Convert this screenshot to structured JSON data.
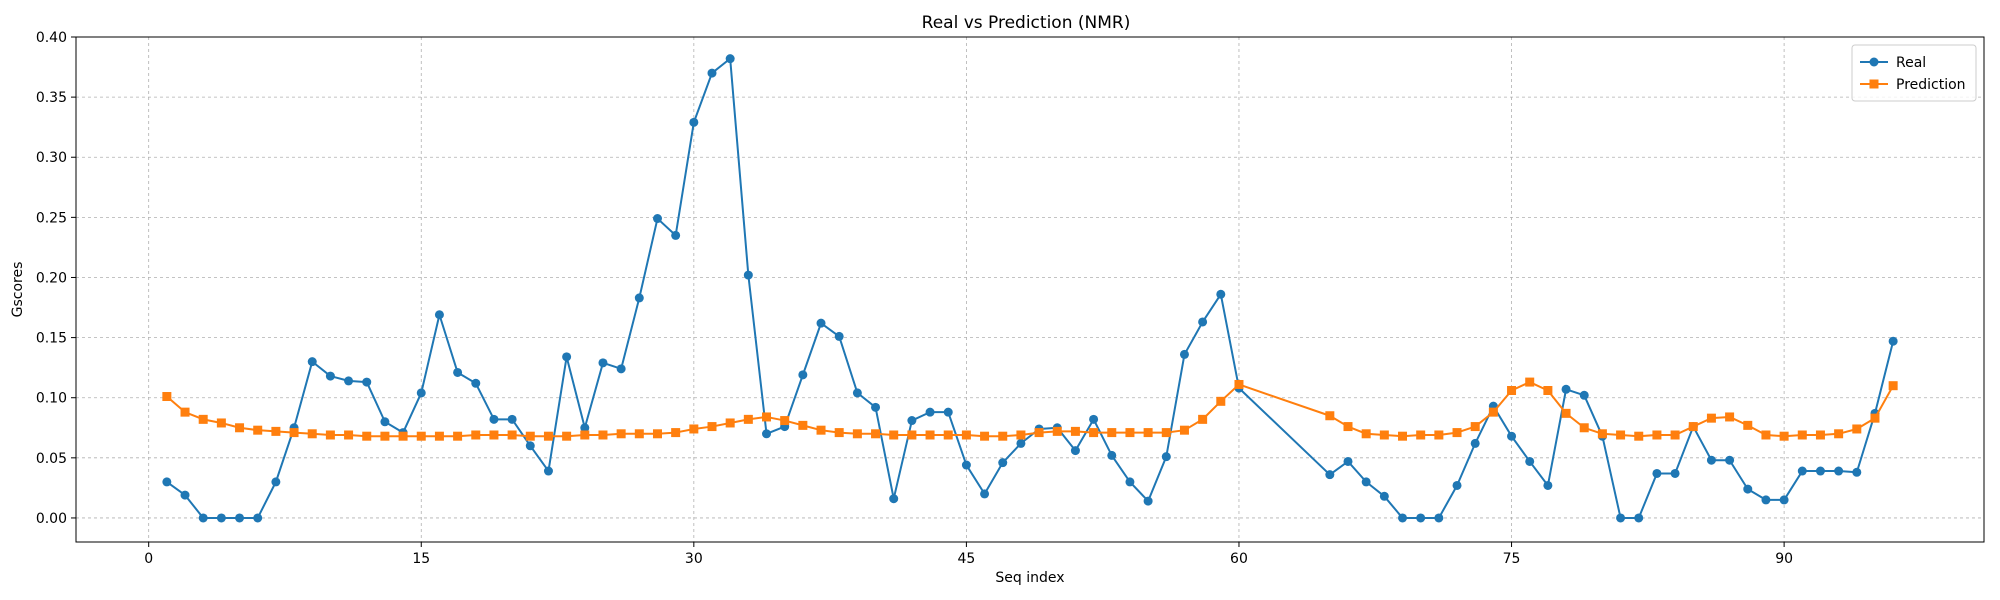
{
  "chart_data": {
    "type": "line",
    "title": "Real vs Prediction (NMR)",
    "xlabel": "Seq index",
    "ylabel": "Gscores",
    "xlim": [
      -4,
      101
    ],
    "ylim": [
      -0.02,
      0.4
    ],
    "xticks": [
      0,
      15,
      30,
      45,
      60,
      75,
      90
    ],
    "yticks": [
      0.0,
      0.05,
      0.1,
      0.15,
      0.2,
      0.25,
      0.3,
      0.35,
      0.4
    ],
    "ytick_labels": [
      "0.00",
      "0.05",
      "0.10",
      "0.15",
      "0.20",
      "0.25",
      "0.30",
      "0.35",
      "0.40"
    ],
    "grid": true,
    "legend_position": "top-right",
    "series": [
      {
        "name": "Real",
        "color": "#1f77b4",
        "marker": "circle",
        "x": [
          1,
          2,
          3,
          4,
          5,
          6,
          7,
          8,
          9,
          10,
          11,
          12,
          13,
          14,
          15,
          16,
          17,
          18,
          19,
          20,
          21,
          22,
          23,
          24,
          25,
          26,
          27,
          28,
          29,
          30,
          31,
          32,
          33,
          34,
          35,
          36,
          37,
          38,
          39,
          40,
          41,
          42,
          43,
          44,
          45,
          46,
          47,
          48,
          49,
          50,
          51,
          52,
          53,
          54,
          55,
          56,
          57,
          58,
          59,
          60,
          65,
          66,
          67,
          68,
          69,
          70,
          71,
          72,
          73,
          74,
          75,
          76,
          77,
          78,
          79,
          80,
          81,
          82,
          83,
          84,
          85,
          86,
          87,
          88,
          89,
          90,
          91,
          92,
          93,
          94,
          95,
          96
        ],
        "y": [
          0.03,
          0.019,
          0.0,
          0.0,
          0.0,
          0.0,
          0.03,
          0.075,
          0.13,
          0.118,
          0.114,
          0.113,
          0.08,
          0.071,
          0.104,
          0.169,
          0.121,
          0.112,
          0.082,
          0.082,
          0.06,
          0.039,
          0.134,
          0.075,
          0.129,
          0.124,
          0.183,
          0.249,
          0.235,
          0.329,
          0.37,
          0.382,
          0.202,
          0.07,
          0.076,
          0.119,
          0.162,
          0.151,
          0.104,
          0.092,
          0.016,
          0.081,
          0.088,
          0.088,
          0.044,
          0.02,
          0.046,
          0.062,
          0.074,
          0.075,
          0.056,
          0.082,
          0.052,
          0.03,
          0.014,
          0.051,
          0.136,
          0.163,
          0.186,
          0.108,
          0.036,
          0.047,
          0.03,
          0.018,
          0.0,
          0.0,
          0.0,
          0.027,
          0.062,
          0.093,
          0.068,
          0.047,
          0.027,
          0.107,
          0.102,
          0.068,
          0.0,
          0.0,
          0.037,
          0.037,
          0.076,
          0.048,
          0.048,
          0.024,
          0.015,
          0.015,
          0.039,
          0.039,
          0.039,
          0.038,
          0.087,
          0.147
        ]
      },
      {
        "name": "Prediction",
        "color": "#ff7f0e",
        "marker": "square",
        "x": [
          1,
          2,
          3,
          4,
          5,
          6,
          7,
          8,
          9,
          10,
          11,
          12,
          13,
          14,
          15,
          16,
          17,
          18,
          19,
          20,
          21,
          22,
          23,
          24,
          25,
          26,
          27,
          28,
          29,
          30,
          31,
          32,
          33,
          34,
          35,
          36,
          37,
          38,
          39,
          40,
          41,
          42,
          43,
          44,
          45,
          46,
          47,
          48,
          49,
          50,
          51,
          52,
          53,
          54,
          55,
          56,
          57,
          58,
          59,
          60,
          65,
          66,
          67,
          68,
          69,
          70,
          71,
          72,
          73,
          74,
          75,
          76,
          77,
          78,
          79,
          80,
          81,
          82,
          83,
          84,
          85,
          86,
          87,
          88,
          89,
          90,
          91,
          92,
          93,
          94,
          95,
          96
        ],
        "y": [
          0.101,
          0.088,
          0.082,
          0.079,
          0.075,
          0.073,
          0.072,
          0.071,
          0.07,
          0.069,
          0.069,
          0.068,
          0.068,
          0.068,
          0.068,
          0.068,
          0.068,
          0.069,
          0.069,
          0.069,
          0.068,
          0.068,
          0.068,
          0.069,
          0.069,
          0.07,
          0.07,
          0.07,
          0.071,
          0.074,
          0.076,
          0.079,
          0.082,
          0.084,
          0.081,
          0.077,
          0.073,
          0.071,
          0.07,
          0.07,
          0.069,
          0.069,
          0.069,
          0.069,
          0.069,
          0.068,
          0.068,
          0.069,
          0.071,
          0.072,
          0.072,
          0.071,
          0.071,
          0.071,
          0.071,
          0.071,
          0.073,
          0.082,
          0.097,
          0.111,
          0.085,
          0.076,
          0.07,
          0.069,
          0.068,
          0.069,
          0.069,
          0.071,
          0.076,
          0.088,
          0.106,
          0.113,
          0.106,
          0.087,
          0.075,
          0.07,
          0.069,
          0.068,
          0.069,
          0.069,
          0.076,
          0.083,
          0.084,
          0.077,
          0.069,
          0.068,
          0.069,
          0.069,
          0.07,
          0.074,
          0.083,
          0.11
        ]
      }
    ]
  }
}
